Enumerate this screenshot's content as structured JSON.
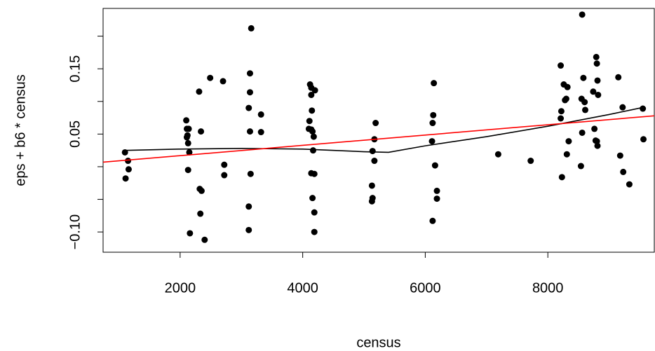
{
  "chart_data": {
    "type": "scatter",
    "x_label": "census",
    "y_label": "eps + b6 * census",
    "xlim": [
      743,
      9737
    ],
    "ylim": [
      -0.131,
      0.2425
    ],
    "xticks": [
      2000,
      4000,
      6000,
      8000
    ],
    "yticks": [
      {
        "value": -0.1,
        "label": "−0.10"
      },
      {
        "value": -0.05,
        "label": null
      },
      {
        "value": 0,
        "label": null
      },
      0.05,
      {
        "value": 0.1,
        "label": null
      },
      0.15,
      {
        "value": 0.2,
        "label": null
      }
    ],
    "series": [
      {
        "type": "scatter",
        "color": "#000000",
        "x": [
          1100,
          1150,
          1160,
          1110,
          2100,
          2110,
          2120,
          2110,
          2140,
          2130,
          2150,
          2130,
          2160,
          2310,
          2320,
          2350,
          2340,
          2330,
          2400,
          2490,
          2700,
          2720,
          2720,
          3160,
          3140,
          3140,
          3120,
          3140,
          3150,
          3120,
          3120,
          3320,
          3320,
          4120,
          4140,
          4200,
          4140,
          4150,
          4110,
          4100,
          4140,
          4160,
          4180,
          4170,
          4140,
          4190,
          4160,
          4190,
          4190,
          5190,
          5170,
          5140,
          5170,
          5130,
          5140,
          5130,
          6140,
          6130,
          6120,
          6110,
          6160,
          6190,
          6190,
          6120,
          7190,
          7720,
          8210,
          8220,
          8210,
          8230,
          8260,
          8280,
          8300,
          8320,
          8340,
          8310,
          8560,
          8580,
          8550,
          8600,
          8610,
          8560,
          8540,
          8740,
          8760,
          8780,
          8800,
          8790,
          8800,
          8810,
          8820,
          8810,
          9150,
          9180,
          9220,
          9230,
          9330,
          9550,
          9560
        ],
        "values": [
          0.022,
          0.009,
          -0.004,
          -0.018,
          0.071,
          0.058,
          0.048,
          0.045,
          0.058,
          0.036,
          0.022,
          -0.005,
          -0.102,
          0.115,
          -0.034,
          -0.037,
          0.054,
          -0.072,
          -0.112,
          0.136,
          0.131,
          0.003,
          -0.013,
          0.212,
          0.143,
          0.114,
          0.09,
          0.054,
          -0.011,
          -0.061,
          -0.097,
          0.08,
          0.053,
          0.126,
          0.121,
          0.117,
          0.11,
          0.086,
          0.07,
          0.058,
          0.057,
          0.054,
          0.046,
          0.025,
          -0.01,
          -0.011,
          -0.048,
          -0.07,
          -0.1,
          0.067,
          0.042,
          0.024,
          0.009,
          -0.029,
          -0.048,
          -0.053,
          0.128,
          0.079,
          0.067,
          0.039,
          0.002,
          -0.037,
          -0.049,
          -0.083,
          0.019,
          0.009,
          0.155,
          0.085,
          0.074,
          -0.016,
          0.126,
          0.102,
          0.104,
          0.122,
          0.039,
          0.019,
          0.233,
          0.136,
          0.104,
          0.099,
          0.087,
          0.052,
          0.001,
          0.115,
          0.058,
          0.04,
          0.039,
          0.168,
          0.158,
          0.132,
          0.11,
          0.032,
          0.137,
          0.017,
          0.091,
          -0.008,
          -0.027,
          0.089,
          0.042
        ]
      },
      {
        "type": "line",
        "color": "#000000",
        "x": [
          1100,
          2000,
          3000,
          4000,
          5000,
          5400,
          6000,
          7000,
          8000,
          9000,
          9560
        ],
        "values": [
          0.025,
          0.027,
          0.028,
          0.027,
          0.023,
          0.022,
          0.032,
          0.046,
          0.062,
          0.08,
          0.091
        ]
      },
      {
        "type": "line",
        "color": "#ff0000",
        "x": [
          743,
          9737
        ],
        "values": [
          0.007,
          0.078
        ]
      }
    ]
  }
}
